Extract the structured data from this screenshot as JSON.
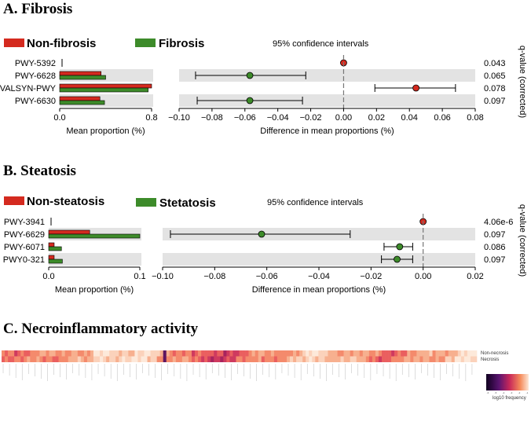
{
  "colors": {
    "group1": "#d42a1f",
    "group2": "#3d8b2a",
    "band": "#e3e3e3",
    "text": "#111111"
  },
  "chart_data": [
    {
      "type": "bar",
      "title": "A. Fibrosis",
      "legend": [
        "Non-fibrosis",
        "Fibrosis"
      ],
      "ci_title": "95% confidence intervals",
      "qvalue_label": "q-value (corrected)",
      "xlabel_left": "Mean proportion (%)",
      "xlabel_right": "Difference in mean proportions (%)",
      "left_range": [
        0,
        0.8
      ],
      "left_ticks": [
        "0.0",
        "0.8"
      ],
      "right_range": [
        -0.1,
        0.08
      ],
      "right_ticks": [
        "−0.10",
        "−0.08",
        "−0.06",
        "−0.04",
        "−0.02",
        "0.00",
        "0.02",
        "0.04",
        "0.06",
        "0.08"
      ],
      "rows": [
        {
          "label": "PWY-5392",
          "g1": 0.0,
          "g2": 0.0,
          "diff": 0.0,
          "lo": 0.0,
          "hi": 0.0,
          "q": "0.043"
        },
        {
          "label": "PWY-6628",
          "g1": 0.36,
          "g2": 0.4,
          "diff": -0.057,
          "lo": -0.09,
          "hi": -0.023,
          "q": "0.065"
        },
        {
          "label": "VALSYN-PWY",
          "g1": 0.8,
          "g2": 0.77,
          "diff": 0.044,
          "lo": 0.019,
          "hi": 0.068,
          "q": "0.078"
        },
        {
          "label": "PWY-6630",
          "g1": 0.35,
          "g2": 0.39,
          "diff": -0.057,
          "lo": -0.089,
          "hi": -0.025,
          "q": "0.097"
        }
      ]
    },
    {
      "type": "bar",
      "title": "B. Steatosis",
      "legend": [
        "Non-steatosis",
        "Stetatosis"
      ],
      "ci_title": "95% confidence intervals",
      "qvalue_label": "q-value (corrected)",
      "xlabel_left": "Mean proportion (%)",
      "xlabel_right": "Difference in mean proportions (%)",
      "left_range": [
        0,
        0.1
      ],
      "left_ticks": [
        "0.0",
        "0.1"
      ],
      "right_range": [
        -0.1,
        0.02
      ],
      "right_ticks": [
        "−0.10",
        "−0.08",
        "−0.06",
        "−0.04",
        "−0.02",
        "0.00",
        "0.02"
      ],
      "rows": [
        {
          "label": "PWY-3941",
          "g1": 0.0,
          "g2": 0.0,
          "diff": 0.0,
          "lo": 0.0,
          "hi": 0.0,
          "q": "4.06e-6"
        },
        {
          "label": "PWY-6629",
          "g1": 0.045,
          "g2": 0.1,
          "diff": -0.062,
          "lo": -0.097,
          "hi": -0.028,
          "q": "0.097"
        },
        {
          "label": "PWY-6071",
          "g1": 0.006,
          "g2": 0.014,
          "diff": -0.009,
          "lo": -0.015,
          "hi": -0.004,
          "q": "0.086"
        },
        {
          "label": "PWY0-321",
          "g1": 0.006,
          "g2": 0.015,
          "diff": -0.01,
          "lo": -0.016,
          "hi": -0.004,
          "q": "0.097"
        }
      ]
    },
    {
      "type": "heatmap",
      "title": "C. Necroinflammatory activity",
      "row_labels": [
        "Non-necrosis",
        "Necrosis"
      ],
      "colorbar_label": "log10 frequency",
      "colorbar_ticks": [
        "-6",
        "-5",
        "-4",
        "-3",
        "-2",
        "-1"
      ]
    }
  ]
}
